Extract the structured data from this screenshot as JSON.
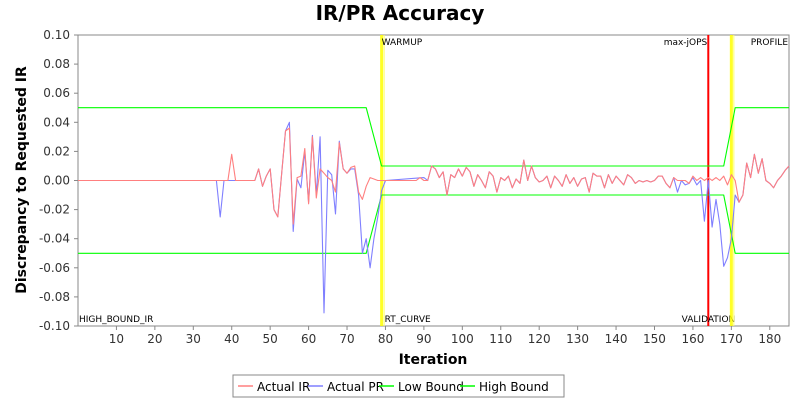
{
  "chart_data": {
    "type": "line",
    "title": "IR/PR Accuracy",
    "xlabel": "Iteration",
    "ylabel": "Discrepancy to Requested IR",
    "xlim": [
      0,
      185
    ],
    "ylim": [
      -0.1,
      0.1
    ],
    "xticks": [
      10,
      20,
      30,
      40,
      50,
      60,
      70,
      80,
      90,
      100,
      110,
      120,
      130,
      140,
      150,
      160,
      170,
      180
    ],
    "yticks": [
      -0.1,
      -0.08,
      -0.06,
      -0.04,
      -0.02,
      0.0,
      0.02,
      0.04,
      0.06,
      0.08,
      0.1
    ],
    "grid": false,
    "legend_position": "bottom",
    "markers": [
      {
        "x": 79,
        "label": "WARMUP",
        "color": "#ffff00"
      },
      {
        "x": 79,
        "label": "RT_CURVE",
        "color": "#ffff00"
      },
      {
        "x": 164,
        "label": "max-jOPS",
        "color": "#ff0000"
      },
      {
        "x": 164,
        "label": "VALIDATION",
        "color": "#ff0000"
      },
      {
        "x": 170,
        "label": "PROFILE",
        "color": "#ffff00"
      },
      {
        "x": 0,
        "label": "HIGH_BOUND_IR",
        "color": "#00ff00"
      }
    ],
    "series": [
      {
        "name": "Actual IR",
        "color": "#ff7f7f",
        "points": [
          [
            0,
            0
          ],
          [
            37,
            0
          ],
          [
            38,
            0
          ],
          [
            39,
            0
          ],
          [
            40,
            0.018
          ],
          [
            41,
            0
          ],
          [
            42,
            0
          ],
          [
            43,
            0
          ],
          [
            44,
            0
          ],
          [
            45,
            0
          ],
          [
            46,
            0
          ],
          [
            47,
            0.008
          ],
          [
            48,
            -0.004
          ],
          [
            49,
            0.003
          ],
          [
            50,
            0.008
          ],
          [
            51,
            -0.02
          ],
          [
            52,
            -0.025
          ],
          [
            53,
            0.005
          ],
          [
            54,
            0.034
          ],
          [
            55,
            0.036
          ],
          [
            56,
            -0.03
          ],
          [
            57,
            0.002
          ],
          [
            58,
            0.003
          ],
          [
            59,
            0.022
          ],
          [
            60,
            -0.016
          ],
          [
            61,
            0.03
          ],
          [
            62,
            -0.012
          ],
          [
            63,
            0.008
          ],
          [
            64,
            0.005
          ],
          [
            65,
            0.002
          ],
          [
            66,
            0
          ],
          [
            67,
            -0.008
          ],
          [
            68,
            0.026
          ],
          [
            69,
            0.008
          ],
          [
            70,
            0.005
          ],
          [
            71,
            0.009
          ],
          [
            72,
            0.01
          ],
          [
            73,
            -0.008
          ],
          [
            74,
            -0.013
          ],
          [
            75,
            -0.004
          ],
          [
            76,
            0.002
          ],
          [
            77,
            0.001
          ],
          [
            78,
            0
          ],
          [
            79,
            0
          ],
          [
            80,
            0
          ],
          [
            81,
            0
          ],
          [
            82,
            0
          ],
          [
            83,
            0
          ],
          [
            84,
            0
          ],
          [
            85,
            0
          ],
          [
            86,
            0
          ],
          [
            87,
            0
          ],
          [
            88,
            0
          ],
          [
            89,
            0.002
          ],
          [
            90,
            0
          ],
          [
            91,
            0
          ],
          [
            92,
            0.01
          ],
          [
            93,
            0.008
          ],
          [
            94,
            0.002
          ],
          [
            95,
            0.006
          ],
          [
            96,
            -0.01
          ],
          [
            97,
            0.004
          ],
          [
            98,
            0.002
          ],
          [
            99,
            0.008
          ],
          [
            100,
            0.003
          ],
          [
            101,
            0.009
          ],
          [
            102,
            0.006
          ],
          [
            103,
            -0.004
          ],
          [
            104,
            0.004
          ],
          [
            105,
            0
          ],
          [
            106,
            -0.005
          ],
          [
            107,
            0.006
          ],
          [
            108,
            0.003
          ],
          [
            109,
            -0.008
          ],
          [
            110,
            0.002
          ],
          [
            111,
            0
          ],
          [
            112,
            0.003
          ],
          [
            113,
            -0.005
          ],
          [
            114,
            0.001
          ],
          [
            115,
            -0.002
          ],
          [
            116,
            0.014
          ],
          [
            117,
            0
          ],
          [
            118,
            0.01
          ],
          [
            119,
            0.002
          ],
          [
            120,
            -0.001
          ],
          [
            121,
            0
          ],
          [
            122,
            0.003
          ],
          [
            123,
            -0.005
          ],
          [
            124,
            0.003
          ],
          [
            125,
            0
          ],
          [
            126,
            -0.004
          ],
          [
            127,
            0.004
          ],
          [
            128,
            -0.002
          ],
          [
            129,
            0.002
          ],
          [
            130,
            -0.004
          ],
          [
            131,
            0.001
          ],
          [
            132,
            0.002
          ],
          [
            133,
            -0.008
          ],
          [
            134,
            0.005
          ],
          [
            135,
            0.003
          ],
          [
            136,
            0.003
          ],
          [
            137,
            -0.005
          ],
          [
            138,
            0.004
          ],
          [
            139,
            -0.002
          ],
          [
            140,
            0.003
          ],
          [
            141,
            0
          ],
          [
            142,
            -0.003
          ],
          [
            143,
            0.004
          ],
          [
            144,
            0.002
          ],
          [
            145,
            -0.002
          ],
          [
            146,
            0
          ],
          [
            147,
            -0.001
          ],
          [
            148,
            0
          ],
          [
            149,
            -0.001
          ],
          [
            150,
            0
          ],
          [
            151,
            0.003
          ],
          [
            152,
            0.003
          ],
          [
            153,
            -0.002
          ],
          [
            154,
            -0.005
          ],
          [
            155,
            0.002
          ],
          [
            156,
            0
          ],
          [
            157,
            0
          ],
          [
            158,
            0
          ],
          [
            159,
            -0.002
          ],
          [
            160,
            0.003
          ],
          [
            161,
            0
          ],
          [
            162,
            0.002
          ],
          [
            163,
            0
          ],
          [
            164,
            0.002
          ],
          [
            165,
            0
          ],
          [
            166,
            0.002
          ],
          [
            167,
            0
          ],
          [
            168,
            0.003
          ],
          [
            169,
            -0.003
          ],
          [
            170,
            0.004
          ],
          [
            171,
            0
          ],
          [
            172,
            -0.015
          ],
          [
            173,
            -0.01
          ],
          [
            174,
            0.012
          ],
          [
            175,
            0.002
          ],
          [
            176,
            0.018
          ],
          [
            177,
            0.005
          ],
          [
            178,
            0.015
          ],
          [
            179,
            0
          ],
          [
            180,
            -0.002
          ],
          [
            181,
            -0.005
          ],
          [
            182,
            0
          ],
          [
            183,
            0.003
          ],
          [
            184,
            0.007
          ],
          [
            185,
            0.01
          ]
        ]
      },
      {
        "name": "Actual PR",
        "color": "#7f7fff",
        "points": [
          [
            0,
            0
          ],
          [
            36,
            0
          ],
          [
            37,
            -0.025
          ],
          [
            38,
            0
          ],
          [
            39,
            0
          ],
          [
            40,
            0
          ],
          [
            41,
            0
          ],
          [
            42,
            0
          ],
          [
            43,
            0
          ],
          [
            44,
            0
          ],
          [
            45,
            0
          ],
          [
            46,
            0
          ],
          [
            47,
            0.008
          ],
          [
            48,
            -0.004
          ],
          [
            49,
            0.003
          ],
          [
            50,
            0.008
          ],
          [
            51,
            -0.02
          ],
          [
            52,
            -0.025
          ],
          [
            53,
            0.005
          ],
          [
            54,
            0.034
          ],
          [
            55,
            0.04
          ],
          [
            56,
            -0.035
          ],
          [
            57,
            0.001
          ],
          [
            58,
            -0.005
          ],
          [
            59,
            0.02
          ],
          [
            60,
            -0.015
          ],
          [
            61,
            0.031
          ],
          [
            62,
            -0.01
          ],
          [
            63,
            0.03
          ],
          [
            64,
            -0.091
          ],
          [
            65,
            0.007
          ],
          [
            66,
            0.004
          ],
          [
            67,
            -0.023
          ],
          [
            68,
            0.027
          ],
          [
            69,
            0.008
          ],
          [
            70,
            0.005
          ],
          [
            71,
            0.008
          ],
          [
            72,
            0.008
          ],
          [
            73,
            -0.01
          ],
          [
            74,
            -0.05
          ],
          [
            75,
            -0.04
          ],
          [
            76,
            -0.06
          ],
          [
            77,
            -0.04
          ],
          [
            78,
            -0.025
          ],
          [
            79,
            -0.007
          ],
          [
            80,
            0
          ],
          [
            90,
            0.002
          ],
          [
            91,
            0
          ],
          [
            92,
            0.01
          ],
          [
            93,
            0.008
          ],
          [
            94,
            0.002
          ],
          [
            95,
            0.006
          ],
          [
            96,
            -0.01
          ],
          [
            97,
            0.004
          ],
          [
            98,
            0.002
          ],
          [
            99,
            0.008
          ],
          [
            100,
            0.003
          ],
          [
            101,
            0.009
          ],
          [
            102,
            0.006
          ],
          [
            103,
            -0.004
          ],
          [
            104,
            0.004
          ],
          [
            105,
            0
          ],
          [
            106,
            -0.005
          ],
          [
            107,
            0.006
          ],
          [
            108,
            0.003
          ],
          [
            109,
            -0.008
          ],
          [
            110,
            0.002
          ],
          [
            111,
            0
          ],
          [
            112,
            0.003
          ],
          [
            113,
            -0.005
          ],
          [
            114,
            0.001
          ],
          [
            115,
            -0.002
          ],
          [
            116,
            0.014
          ],
          [
            117,
            0
          ],
          [
            118,
            0.01
          ],
          [
            119,
            0.002
          ],
          [
            120,
            -0.001
          ],
          [
            121,
            0
          ],
          [
            122,
            0.003
          ],
          [
            123,
            -0.005
          ],
          [
            124,
            0.003
          ],
          [
            125,
            0
          ],
          [
            126,
            -0.004
          ],
          [
            127,
            0.004
          ],
          [
            128,
            -0.002
          ],
          [
            129,
            0.002
          ],
          [
            130,
            -0.004
          ],
          [
            131,
            0.001
          ],
          [
            132,
            0.002
          ],
          [
            133,
            -0.008
          ],
          [
            134,
            0.005
          ],
          [
            135,
            0.003
          ],
          [
            136,
            0.003
          ],
          [
            137,
            -0.005
          ],
          [
            138,
            0.004
          ],
          [
            139,
            -0.002
          ],
          [
            140,
            0.003
          ],
          [
            141,
            0
          ],
          [
            142,
            -0.003
          ],
          [
            143,
            0.004
          ],
          [
            144,
            0.002
          ],
          [
            145,
            -0.002
          ],
          [
            146,
            0
          ],
          [
            147,
            -0.001
          ],
          [
            148,
            0
          ],
          [
            149,
            -0.001
          ],
          [
            150,
            0
          ],
          [
            151,
            0.003
          ],
          [
            152,
            0.003
          ],
          [
            153,
            -0.002
          ],
          [
            154,
            -0.005
          ],
          [
            155,
            0.002
          ],
          [
            156,
            -0.008
          ],
          [
            157,
            0
          ],
          [
            158,
            -0.003
          ],
          [
            159,
            -0.002
          ],
          [
            160,
            0.002
          ],
          [
            161,
            -0.003
          ],
          [
            162,
            0
          ],
          [
            163,
            -0.028
          ],
          [
            164,
            0
          ],
          [
            165,
            -0.032
          ],
          [
            166,
            -0.013
          ],
          [
            167,
            -0.03
          ],
          [
            168,
            -0.059
          ],
          [
            169,
            -0.053
          ],
          [
            170,
            -0.04
          ],
          [
            171,
            -0.01
          ],
          [
            172,
            -0.015
          ],
          [
            173,
            -0.01
          ],
          [
            174,
            0.012
          ],
          [
            175,
            0.002
          ],
          [
            176,
            0.018
          ],
          [
            177,
            0.005
          ],
          [
            178,
            0.015
          ],
          [
            179,
            0
          ],
          [
            180,
            -0.002
          ],
          [
            181,
            -0.005
          ],
          [
            182,
            0
          ],
          [
            183,
            0.003
          ],
          [
            184,
            0.007
          ],
          [
            185,
            0.01
          ]
        ]
      },
      {
        "name": "Low Bound",
        "color": "#00ff00",
        "points": [
          [
            0,
            -0.05
          ],
          [
            75,
            -0.05
          ],
          [
            79,
            -0.01
          ],
          [
            168,
            -0.01
          ],
          [
            171,
            -0.05
          ],
          [
            185,
            -0.05
          ]
        ]
      },
      {
        "name": "High Bound",
        "color": "#00ff00",
        "points": [
          [
            0,
            0.05
          ],
          [
            75,
            0.05
          ],
          [
            79,
            0.01
          ],
          [
            168,
            0.01
          ],
          [
            171,
            0.05
          ],
          [
            185,
            0.05
          ]
        ]
      }
    ]
  }
}
